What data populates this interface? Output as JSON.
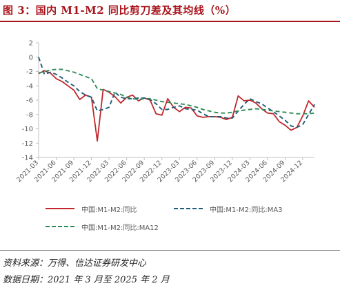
{
  "figure": {
    "title": "图 3：国内 M1-M2 同比剪刀差及其均线（%）",
    "source_note": "资料来源：万得、信达证券研发中心",
    "date_note": "数据日期：2021 年 3 月至 2025 年 2 月"
  },
  "chart_data": {
    "type": "line",
    "title": "",
    "xlabel": "",
    "ylabel": "",
    "ylim": [
      -14,
      2
    ],
    "yticks": [
      -14,
      -12,
      -10,
      -8,
      -6,
      -4,
      -2,
      0,
      2
    ],
    "grid": false,
    "legend_position": "bottom",
    "xtick_labels": [
      "2021-03",
      "2021-06",
      "2021-09",
      "2021-12",
      "2022-03",
      "2022-06",
      "2022-09",
      "2022-12",
      "2023-03",
      "2023-06",
      "2023-09",
      "2023-12",
      "2024-03",
      "2024-06",
      "2024-09",
      "2024-12"
    ],
    "x": [
      "2021-03",
      "2021-04",
      "2021-05",
      "2021-06",
      "2021-07",
      "2021-08",
      "2021-09",
      "2021-10",
      "2021-11",
      "2021-12",
      "2022-01",
      "2022-02",
      "2022-03",
      "2022-04",
      "2022-05",
      "2022-06",
      "2022-07",
      "2022-08",
      "2022-09",
      "2022-10",
      "2022-11",
      "2022-12",
      "2023-01",
      "2023-02",
      "2023-03",
      "2023-04",
      "2023-05",
      "2023-06",
      "2023-07",
      "2023-08",
      "2023-09",
      "2023-10",
      "2023-11",
      "2023-12",
      "2024-01",
      "2024-02",
      "2024-03",
      "2024-04",
      "2024-05",
      "2024-06",
      "2024-07",
      "2024-08",
      "2024-09",
      "2024-10",
      "2024-11",
      "2024-12",
      "2025-01",
      "2025-02"
    ],
    "series": [
      {
        "name": "中国:M1-M2:同比",
        "color": "#c0282d",
        "dash": "solid",
        "values": [
          -2.3,
          -1.9,
          -2.2,
          -3.0,
          -3.4,
          -4.0,
          -4.6,
          -5.9,
          -5.3,
          -5.6,
          -11.7,
          -4.5,
          -4.9,
          -5.5,
          -6.4,
          -5.6,
          -5.3,
          -6.1,
          -5.7,
          -6.0,
          -7.9,
          -8.1,
          -5.8,
          -7.0,
          -7.6,
          -7.0,
          -7.1,
          -8.2,
          -8.4,
          -8.3,
          -8.3,
          -8.4,
          -8.7,
          -8.4,
          -5.4,
          -6.1,
          -6.0,
          -6.4,
          -7.2,
          -7.8,
          -7.9,
          -9.0,
          -9.5,
          -10.2,
          -9.8,
          -8.2,
          -6.1,
          -7.0
        ]
      },
      {
        "name": "中国:M1-M2:同比:MA3",
        "color": "#1f5c77",
        "dash": "dashed",
        "values": [
          0.0,
          -2.4,
          -2.1,
          -2.4,
          -2.9,
          -3.5,
          -4.0,
          -4.8,
          -5.3,
          -5.6,
          -7.5,
          -7.3,
          -7.0,
          -4.9,
          -5.6,
          -5.8,
          -5.8,
          -5.7,
          -5.7,
          -5.9,
          -6.5,
          -7.3,
          -7.3,
          -7.0,
          -6.8,
          -7.2,
          -7.3,
          -7.4,
          -7.9,
          -8.3,
          -8.3,
          -8.3,
          -8.5,
          -8.5,
          -7.5,
          -6.6,
          -5.8,
          -6.2,
          -6.5,
          -7.1,
          -7.6,
          -8.2,
          -8.8,
          -9.6,
          -9.8,
          -9.4,
          -8.0,
          -6.6
        ]
      },
      {
        "name": "中国:M1-M2:同比:MA12",
        "color": "#2e8b57",
        "dash": "dashed",
        "values": [
          -2.2,
          -2.0,
          -1.8,
          -1.7,
          -1.7,
          -1.9,
          -2.1,
          -2.4,
          -2.7,
          -3.0,
          -4.4,
          -4.6,
          -4.8,
          -5.0,
          -5.2,
          -5.6,
          -5.8,
          -5.9,
          -5.8,
          -5.8,
          -6.0,
          -6.2,
          -6.3,
          -6.4,
          -6.5,
          -6.6,
          -6.8,
          -7.0,
          -7.3,
          -7.5,
          -7.7,
          -7.8,
          -7.8,
          -7.7,
          -7.5,
          -7.4,
          -7.3,
          -7.2,
          -7.3,
          -7.4,
          -7.5,
          -7.6,
          -7.7,
          -7.8,
          -7.9,
          -7.9,
          -7.9,
          -7.8
        ]
      }
    ]
  }
}
